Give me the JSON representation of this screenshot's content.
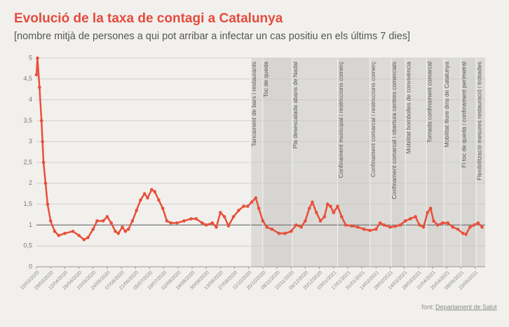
{
  "chart_data": {
    "type": "line",
    "title": "Evolució de la taxa de contagi a Catalunya",
    "subtitle": "[nombre mitjà de persones a qui pot arribar a infectar un cas positiu en els últims 7 dies]",
    "source_prefix": "font:",
    "source_link": "Departament de Salut",
    "x": [
      "15/03/2020",
      "16/03/2020",
      "18/03/2020",
      "20/03/2020",
      "21/03/2020",
      "22/03/2020",
      "24/03/2020",
      "26/03/2020",
      "29/03/2020",
      "02/04/2020",
      "06/04/2020",
      "12/04/2020",
      "20/04/2020",
      "26/04/2020",
      "01/05/2020",
      "05/05/2020",
      "10/05/2020",
      "14/05/2020",
      "20/05/2020",
      "24/05/2020",
      "28/05/2020",
      "01/06/2020",
      "04/06/2020",
      "08/06/2020",
      "11/06/2020",
      "14/06/2020",
      "18/06/2020",
      "22/06/2020",
      "26/06/2020",
      "30/06/2020",
      "03/07/2020",
      "07/07/2020",
      "10/07/2020",
      "14/07/2020",
      "18/07/2020",
      "22/07/2020",
      "26/07/2020",
      "01/08/2020",
      "08/08/2020",
      "15/08/2020",
      "20/08/2020",
      "26/08/2020",
      "30/08/2020",
      "05/09/2020",
      "09/09/2020",
      "13/09/2020",
      "17/09/2020",
      "21/09/2020",
      "26/09/2020",
      "01/10/2020",
      "06/10/2020",
      "10/10/2020",
      "14/10/2020",
      "18/10/2020",
      "21/10/2020",
      "25/10/2020",
      "29/10/2020",
      "03/11/2020",
      "10/11/2020",
      "16/11/2020",
      "22/11/2020",
      "27/11/2020",
      "02/12/2020",
      "06/12/2020",
      "10/12/2020",
      "13/12/2020",
      "17/12/2020",
      "21/12/2020",
      "25/12/2020",
      "28/12/2020",
      "31/12/2020",
      "03/01/2021",
      "07/01/2021",
      "11/01/2021",
      "15/01/2021",
      "21/01/2021",
      "27/01/2021",
      "02/02/2021",
      "08/02/2021",
      "14/02/2021",
      "18/02/2021",
      "22/02/2021",
      "28/02/2021",
      "05/03/2021",
      "10/03/2021",
      "15/03/2021",
      "20/03/2021",
      "25/03/2021",
      "29/03/2021",
      "02/04/2021",
      "06/04/2021",
      "09/04/2021",
      "12/04/2021",
      "16/04/2021",
      "21/04/2021",
      "26/04/2021",
      "01/05/2021",
      "06/05/2021",
      "11/05/2021",
      "14/05/2021",
      "18/05/2021",
      "22/05/2021",
      "26/05/2021",
      "30/05/2021"
    ],
    "series": [
      {
        "name": "Taxa de contagi",
        "color": "#e8503a",
        "values": [
          4.6,
          5.0,
          4.3,
          3.5,
          3.0,
          2.5,
          2.0,
          1.5,
          1.1,
          0.85,
          0.75,
          0.8,
          0.85,
          0.75,
          0.65,
          0.7,
          0.9,
          1.1,
          1.1,
          1.2,
          1.05,
          0.85,
          0.8,
          0.95,
          0.85,
          0.9,
          1.1,
          1.35,
          1.6,
          1.75,
          1.65,
          1.85,
          1.8,
          1.6,
          1.4,
          1.1,
          1.05,
          1.05,
          1.1,
          1.15,
          1.15,
          1.05,
          1.0,
          1.05,
          0.95,
          1.3,
          1.2,
          0.98,
          1.2,
          1.35,
          1.45,
          1.45,
          1.55,
          1.65,
          1.4,
          1.1,
          0.95,
          0.9,
          0.8,
          0.8,
          0.85,
          1.0,
          0.95,
          1.1,
          1.4,
          1.55,
          1.3,
          1.1,
          1.2,
          1.5,
          1.45,
          1.3,
          1.45,
          1.2,
          1.0,
          0.98,
          0.95,
          0.9,
          0.87,
          0.9,
          1.05,
          1.0,
          0.95,
          0.97,
          1.0,
          1.1,
          1.15,
          1.2,
          1.0,
          0.95,
          1.3,
          1.4,
          1.1,
          1.0,
          1.05,
          1.05,
          0.95,
          0.9,
          0.8,
          0.78,
          0.95,
          1.0,
          1.05,
          0.95
        ]
      }
    ],
    "xlim": [
      "15/03/2020",
      "02/06/2021"
    ],
    "xticks": [
      "15/03/2020",
      "29/03/2020",
      "12/04/2020",
      "26/04/2020",
      "10/05/2020",
      "24/05/2020",
      "07/06/2020",
      "21/06/2020",
      "05/07/2020",
      "19/07/2020",
      "02/08/2020",
      "16/08/2020",
      "30/08/2020",
      "13/09/2020",
      "27/09/2020",
      "11/10/2020",
      "25/10/2020",
      "08/11/2020",
      "22/11/2020",
      "06/12/2020",
      "20/12/2020",
      "03/01/2021",
      "17/01/2021",
      "31/01/2021",
      "14/02/2021",
      "28/02/2021",
      "14/03/2021",
      "28/03/2021",
      "11/04/2021",
      "25/04/2021",
      "09/05/2021",
      "23/05/2021"
    ],
    "ylim": [
      0,
      5
    ],
    "yticks": [
      0,
      {
        "value": 0.5,
        "label": "0,5"
      },
      1,
      {
        "value": 1.5,
        "label": "1,5"
      },
      2,
      {
        "value": 2.5,
        "label": "2,5"
      },
      3,
      {
        "value": 3.5,
        "label": "3,5"
      },
      4,
      {
        "value": 4.5,
        "label": "4,5"
      },
      5
    ],
    "grid": true,
    "reference_line": 1,
    "annotations": [
      {
        "x": "13/10/2020",
        "label": "Tancament de bars i restaurants"
      },
      {
        "x": "25/10/2020",
        "label": "Toc de queda"
      },
      {
        "x": "23/11/2020",
        "label": "Pla desescalada abans de Nadal"
      },
      {
        "x": "07/01/2021",
        "label": "Confinament municipal i restriccions comerç"
      },
      {
        "x": "08/02/2021",
        "label": "Confinament comarcal i restriccions comerç"
      },
      {
        "x": "01/03/2021",
        "label": "Confinament comarcal i obertura centres comercials"
      },
      {
        "x": "15/03/2021",
        "label": "Mobilitat bombolles de convivència"
      },
      {
        "x": "05/04/2021",
        "label": "Tornada confinament comarcal"
      },
      {
        "x": "22/04/2021",
        "label": "Mobilitat lliure dins de Catalunya"
      },
      {
        "x": "09/05/2021",
        "label": "Fi toc de queda i confinament perimetral"
      },
      {
        "x": "24/05/2021",
        "label": "Flexibilització mesures restauració i trobades"
      }
    ]
  }
}
